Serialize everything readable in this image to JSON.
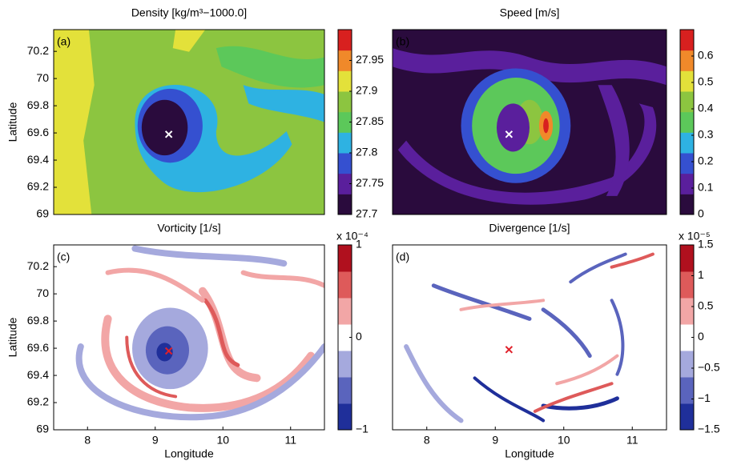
{
  "chart_data": [
    {
      "type": "contour",
      "title": "Density [kg/m³−1000.0]",
      "panel_label": "(a)",
      "ylabel": "Latitude",
      "xlim": [
        7.5,
        11.5
      ],
      "ylim": [
        69,
        70.36
      ],
      "yticks": [
        69,
        69.2,
        69.4,
        69.6,
        69.8,
        70,
        70.2
      ],
      "colormap": [
        "#2a0b3d",
        "#5a1f9c",
        "#3550d0",
        "#2eb2e2",
        "#5cc85a",
        "#8cc540",
        "#e3e13a",
        "#f0892a",
        "#d8201f"
      ],
      "clim": [
        27.7,
        28.0
      ],
      "cticks": [
        27.7,
        27.75,
        27.8,
        27.85,
        27.9,
        27.95
      ],
      "marker": {
        "x": 9.2,
        "y": 69.59,
        "color": "#ffffff"
      }
    },
    {
      "type": "contour",
      "title": "Speed [m/s]",
      "panel_label": "(b)",
      "xlim": [
        7.5,
        11.5
      ],
      "ylim": [
        69,
        70.36
      ],
      "colormap": [
        "#2a0b3d",
        "#5a1f9c",
        "#3550d0",
        "#2eb2e2",
        "#5cc85a",
        "#8cc540",
        "#e3e13a",
        "#f0892a",
        "#d8201f"
      ],
      "clim": [
        0,
        0.7
      ],
      "cticks": [
        0,
        0.1,
        0.2,
        0.3,
        0.4,
        0.5,
        0.6
      ],
      "marker": {
        "x": 9.2,
        "y": 69.59,
        "color": "#ffffff"
      }
    },
    {
      "type": "contour",
      "title": "Vorticity [1/s]",
      "panel_label": "(c)",
      "ylabel": "Latitude",
      "xlabel": "Longitude",
      "xlim": [
        7.5,
        11.5
      ],
      "ylim": [
        69,
        70.36
      ],
      "xticks": [
        8,
        9,
        10,
        11
      ],
      "yticks": [
        69,
        69.2,
        69.4,
        69.6,
        69.8,
        70,
        70.2
      ],
      "colormap": [
        "#1f2f9a",
        "#5a64bd",
        "#a5a9dd",
        "#ffffff",
        "#f2a6a6",
        "#de5a5a",
        "#b0101e"
      ],
      "clim": [
        -1,
        1
      ],
      "cticks": [
        {
          "value": -1,
          "label": "−1"
        },
        0,
        1
      ],
      "cnote": "x 10⁻⁴",
      "marker": {
        "x": 9.2,
        "y": 69.58,
        "color": "#e0202a"
      }
    },
    {
      "type": "contour",
      "title": "Divergence [1/s]",
      "panel_label": "(d)",
      "xlabel": "Longitude",
      "xlim": [
        7.5,
        11.5
      ],
      "ylim": [
        69,
        70.36
      ],
      "xticks": [
        8,
        9,
        10,
        11
      ],
      "colormap": [
        "#1f2f9a",
        "#5a64bd",
        "#a5a9dd",
        "#ffffff",
        "#f2a6a6",
        "#de5a5a",
        "#b0101e"
      ],
      "clim": [
        -1.5,
        1.5
      ],
      "cticks": [
        {
          "value": -1.5,
          "label": "−1.5"
        },
        {
          "value": -1,
          "label": "−1"
        },
        {
          "value": -0.5,
          "label": "−0.5"
        },
        0,
        0.5,
        1,
        1.5
      ],
      "cnote": "x 10⁻⁵",
      "marker": {
        "x": 9.2,
        "y": 69.59,
        "color": "#e0202a"
      }
    }
  ]
}
